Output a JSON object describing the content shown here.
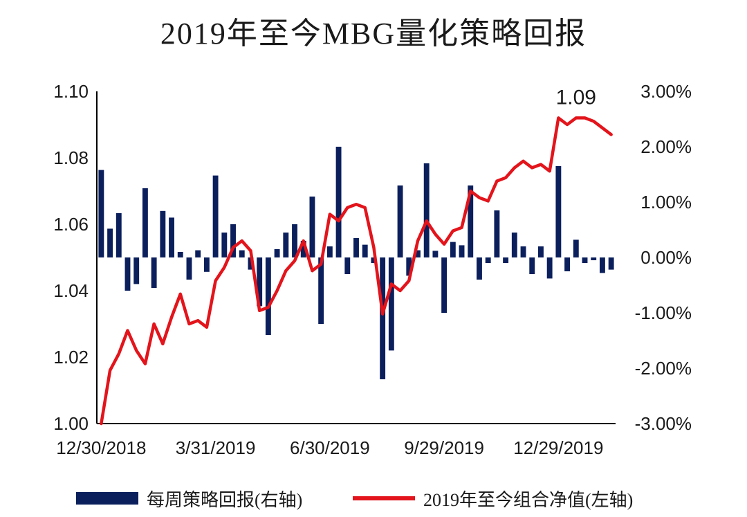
{
  "chart_data": {
    "type": "bar+line",
    "title": "2019年至今MBG量化策略回报",
    "x": [
      "2018-12-30",
      "2019-01-06",
      "2019-01-13",
      "2019-01-20",
      "2019-01-27",
      "2019-02-03",
      "2019-02-10",
      "2019-02-17",
      "2019-02-24",
      "2019-03-03",
      "2019-03-10",
      "2019-03-17",
      "2019-03-24",
      "2019-03-31",
      "2019-04-07",
      "2019-04-14",
      "2019-04-21",
      "2019-04-28",
      "2019-05-05",
      "2019-05-12",
      "2019-05-19",
      "2019-05-26",
      "2019-06-02",
      "2019-06-09",
      "2019-06-16",
      "2019-06-23",
      "2019-06-30",
      "2019-07-07",
      "2019-07-14",
      "2019-07-21",
      "2019-07-28",
      "2019-08-04",
      "2019-08-11",
      "2019-08-18",
      "2019-08-25",
      "2019-09-01",
      "2019-09-08",
      "2019-09-15",
      "2019-09-22",
      "2019-09-29",
      "2019-10-06",
      "2019-10-13",
      "2019-10-20",
      "2019-10-27",
      "2019-11-03",
      "2019-11-10",
      "2019-11-17",
      "2019-11-24",
      "2019-12-01",
      "2019-12-08",
      "2019-12-15",
      "2019-12-22",
      "2019-12-29",
      "2020-01-05",
      "2020-01-12",
      "2020-01-19",
      "2020-01-26",
      "2020-02-02",
      "2020-02-09"
    ],
    "x_tick_labels": [
      "12/30/2018",
      "3/31/2019",
      "6/30/2019",
      "9/29/2019",
      "12/29/2019"
    ],
    "x_tick_index": [
      0,
      13,
      26,
      39,
      52
    ],
    "series": [
      {
        "name": "每周策略回报(右轴)",
        "type": "bar",
        "axis": "right",
        "values": [
          0.0158,
          0.0052,
          0.008,
          -0.006,
          -0.0048,
          0.0125,
          -0.0055,
          0.0084,
          0.0072,
          0.001,
          -0.004,
          0.0013,
          -0.0026,
          0.0148,
          0.0045,
          0.006,
          0.0013,
          -0.0022,
          -0.0088,
          -0.014,
          0.0015,
          0.0045,
          0.006,
          0.003,
          0.011,
          -0.012,
          0.002,
          0.02,
          -0.003,
          0.0035,
          0.0023,
          -0.001,
          -0.022,
          -0.0168,
          0.013,
          -0.0033,
          0.0013,
          0.017,
          0.0012,
          -0.01,
          0.0028,
          0.0022,
          0.013,
          -0.004,
          -0.001,
          0.0085,
          -0.001,
          0.0045,
          0.002,
          -0.003,
          0.002,
          -0.0038,
          0.0165,
          -0.0025,
          0.0032,
          -0.001,
          -0.0005,
          -0.0028,
          -0.0022
        ]
      },
      {
        "name": "2019年至今组合净值(左轴)",
        "type": "line",
        "axis": "left",
        "values": [
          1.0,
          1.016,
          1.021,
          1.028,
          1.022,
          1.018,
          1.03,
          1.024,
          1.032,
          1.039,
          1.03,
          1.031,
          1.029,
          1.043,
          1.047,
          1.053,
          1.055,
          1.052,
          1.034,
          1.035,
          1.04,
          1.046,
          1.049,
          1.055,
          1.046,
          1.048,
          1.063,
          1.061,
          1.065,
          1.066,
          1.065,
          1.053,
          1.033,
          1.042,
          1.04,
          1.043,
          1.055,
          1.061,
          1.057,
          1.054,
          1.058,
          1.059,
          1.07,
          1.068,
          1.067,
          1.073,
          1.074,
          1.077,
          1.079,
          1.077,
          1.078,
          1.076,
          1.092,
          1.09,
          1.092,
          1.092,
          1.091,
          1.089,
          1.087
        ]
      }
    ],
    "left_axis": {
      "ylim": [
        1.0,
        1.1
      ],
      "ticks": [
        "1.00",
        "1.02",
        "1.04",
        "1.06",
        "1.08",
        "1.10"
      ]
    },
    "right_axis": {
      "ylim": [
        -0.03,
        0.03
      ],
      "ticks": [
        "-3.00%",
        "-2.00%",
        "-1.00%",
        "0.00%",
        "1.00%",
        "2.00%",
        "3.00%"
      ]
    },
    "annotation": {
      "text": "1.09",
      "index": 54
    },
    "grid": false,
    "legend_position": "bottom",
    "colors": {
      "bar": "#0b1f5c",
      "line": "#e3141b"
    }
  }
}
